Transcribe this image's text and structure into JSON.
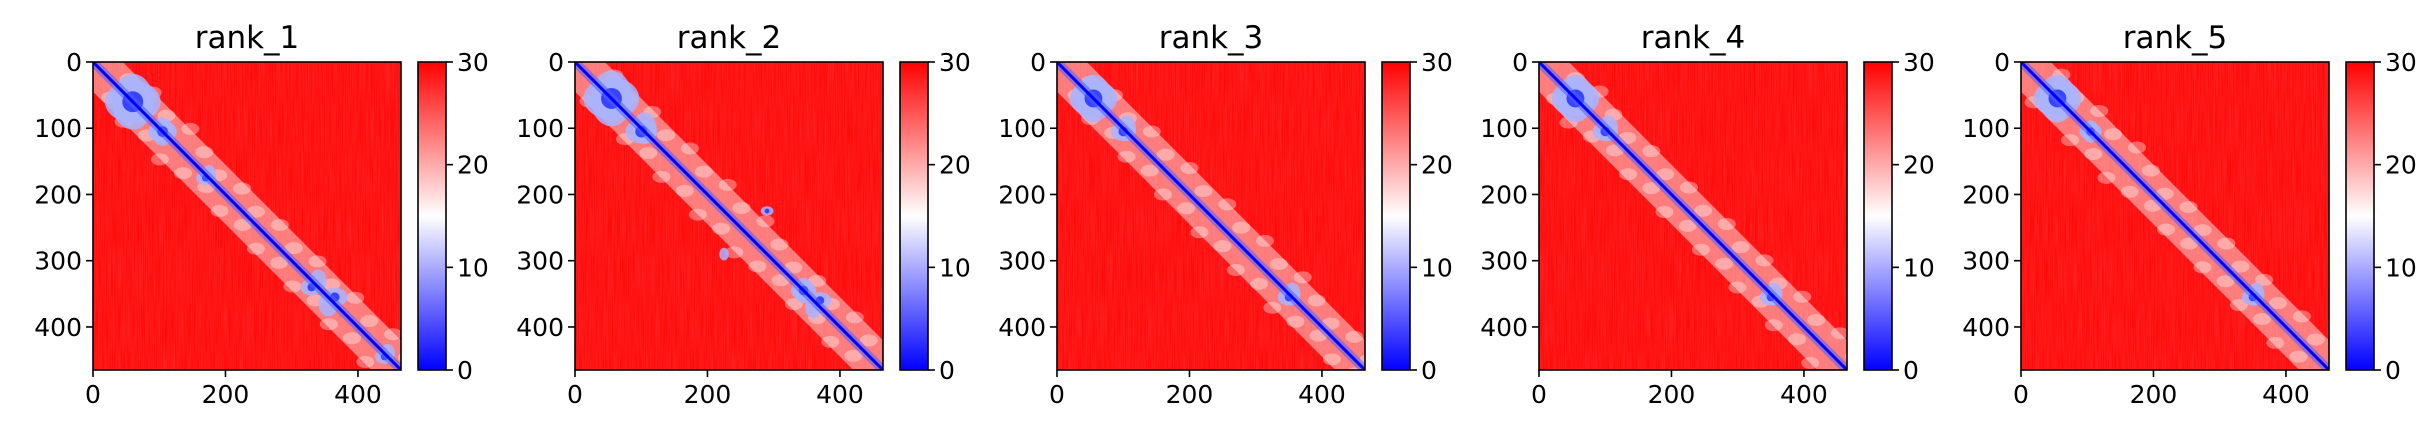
{
  "chart_data": [
    {
      "type": "heatmap",
      "title": "rank_1",
      "xlim": [
        0,
        465
      ],
      "ylim": [
        465,
        0
      ],
      "xticks": [
        0,
        200,
        400
      ],
      "yticks": [
        0,
        100,
        200,
        300,
        400
      ],
      "colorbar": {
        "range": [
          0,
          30
        ],
        "ticks": [
          0,
          10,
          20,
          30
        ],
        "colormap": [
          "#0000ff",
          "#ffffff",
          "#ff0000"
        ]
      },
      "blobs": [
        [
          105,
          105,
          18
        ],
        [
          170,
          175,
          12
        ],
        [
          330,
          340,
          14
        ],
        [
          365,
          355,
          16
        ],
        [
          440,
          445,
          12
        ],
        [
          60,
          60,
          35
        ]
      ]
    },
    {
      "type": "heatmap",
      "title": "rank_2",
      "xlim": [
        0,
        465
      ],
      "ylim": [
        465,
        0
      ],
      "xticks": [
        0,
        200,
        400
      ],
      "yticks": [
        0,
        100,
        200,
        300,
        400
      ],
      "colorbar": {
        "range": [
          0,
          30
        ],
        "ticks": [
          0,
          10,
          20,
          30
        ],
        "colormap": [
          "#0000ff",
          "#ffffff",
          "#ff0000"
        ]
      },
      "blobs": [
        [
          100,
          105,
          20
        ],
        [
          290,
          225,
          8
        ],
        [
          345,
          345,
          16
        ],
        [
          370,
          360,
          14
        ],
        [
          55,
          55,
          35
        ]
      ]
    },
    {
      "type": "heatmap",
      "title": "rank_3",
      "xlim": [
        0,
        465
      ],
      "ylim": [
        465,
        0
      ],
      "xticks": [
        0,
        200,
        400
      ],
      "yticks": [
        0,
        100,
        200,
        300,
        400
      ],
      "colorbar": {
        "range": [
          0,
          30
        ],
        "ticks": [
          0,
          10,
          20,
          30
        ],
        "colormap": [
          "#0000ff",
          "#ffffff",
          "#ff0000"
        ]
      },
      "blobs": [
        [
          100,
          105,
          16
        ],
        [
          350,
          355,
          14
        ],
        [
          55,
          55,
          30
        ]
      ]
    },
    {
      "type": "heatmap",
      "title": "rank_4",
      "xlim": [
        0,
        465
      ],
      "ylim": [
        465,
        0
      ],
      "xticks": [
        0,
        200,
        400
      ],
      "yticks": [
        0,
        100,
        200,
        300,
        400
      ],
      "colorbar": {
        "range": [
          0,
          30
        ],
        "ticks": [
          0,
          10,
          20,
          30
        ],
        "colormap": [
          "#0000ff",
          "#ffffff",
          "#ff0000"
        ]
      },
      "blobs": [
        [
          100,
          105,
          16
        ],
        [
          350,
          355,
          14
        ],
        [
          55,
          55,
          30
        ]
      ]
    },
    {
      "type": "heatmap",
      "title": "rank_5",
      "xlim": [
        0,
        465
      ],
      "ylim": [
        465,
        0
      ],
      "xticks": [
        0,
        200,
        400
      ],
      "yticks": [
        0,
        100,
        200,
        300,
        400
      ],
      "colorbar": {
        "range": [
          0,
          30
        ],
        "ticks": [
          0,
          10,
          20,
          30
        ],
        "colormap": [
          "#0000ff",
          "#ffffff",
          "#ff0000"
        ]
      },
      "blobs": [
        [
          105,
          105,
          14
        ],
        [
          350,
          355,
          14
        ],
        [
          55,
          55,
          30
        ]
      ]
    }
  ]
}
